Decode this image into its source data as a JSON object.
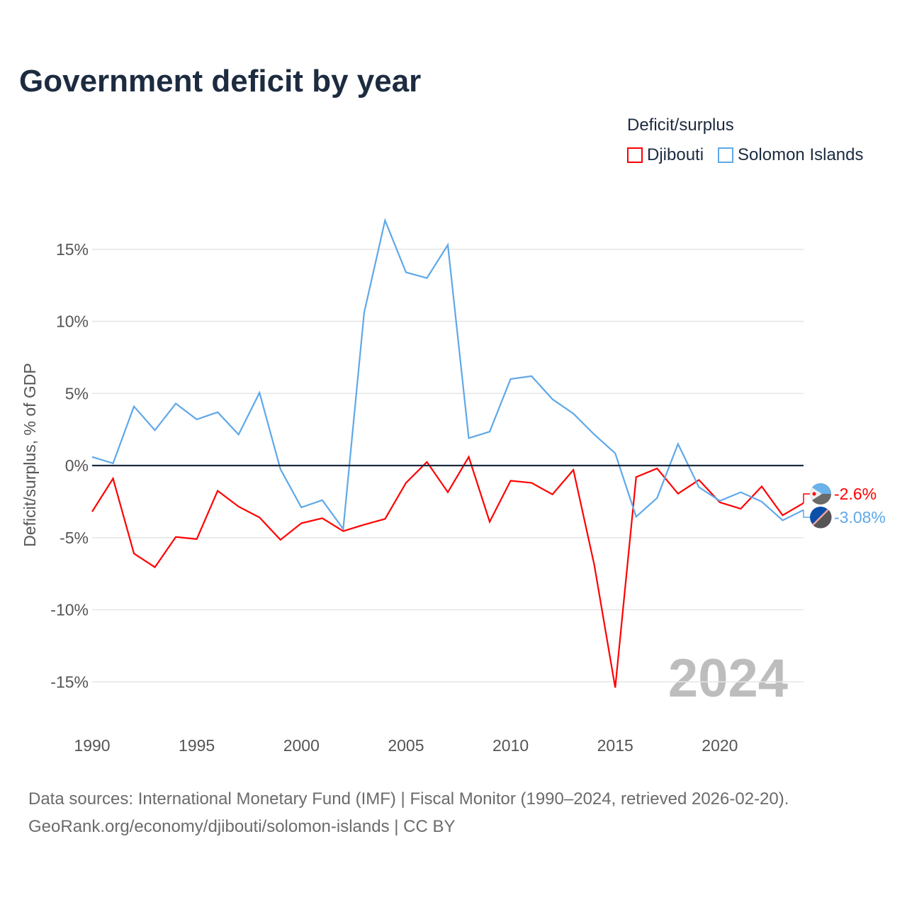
{
  "title": "Government deficit by year",
  "legend": {
    "title": "Deficit/surplus",
    "entries": [
      "Djibouti",
      "Solomon Islands"
    ]
  },
  "footer": {
    "line1": "Data sources: International Monetary Fund (IMF) | Fiscal Monitor (1990–2024, retrieved 2026-02-20).",
    "line2": "GeoRank.org/economy/djibouti/solomon-islands | CC BY"
  },
  "chart_data": {
    "type": "line",
    "title": "Government deficit by year",
    "xlabel": "",
    "ylabel": "Deficit/surplus, % of GDP",
    "xlim": [
      1990,
      2024
    ],
    "ylim": [
      -17.5,
      18.5
    ],
    "yticks": [
      15,
      10,
      5,
      0,
      -5,
      -10,
      -15
    ],
    "ytick_labels": [
      "15%",
      "10%",
      "5%",
      "0%",
      "-5%",
      "-10%",
      "-15%"
    ],
    "xticks": [
      1990,
      1995,
      2000,
      2005,
      2010,
      2015,
      2020
    ],
    "xtick_labels": [
      "1990",
      "1995",
      "2000",
      "2005",
      "2010",
      "2015",
      "2020"
    ],
    "grid": true,
    "legend_position": "top-right",
    "watermark_year": "2024",
    "x": [
      1990,
      1991,
      1992,
      1993,
      1994,
      1995,
      1996,
      1997,
      1998,
      1999,
      2000,
      2001,
      2002,
      2003,
      2004,
      2005,
      2006,
      2007,
      2008,
      2009,
      2010,
      2011,
      2012,
      2013,
      2014,
      2015,
      2016,
      2017,
      2018,
      2019,
      2020,
      2021,
      2022,
      2023,
      2024
    ],
    "series": [
      {
        "name": "Djibouti",
        "color": "#ff0000",
        "end_label": "-2.6%",
        "values": [
          -3.2,
          -0.9,
          -6.1,
          -7.05,
          -4.95,
          -5.1,
          -1.75,
          -2.85,
          -3.6,
          -5.15,
          -4.0,
          -3.65,
          -4.55,
          -4.1,
          -3.7,
          -1.2,
          0.25,
          -1.85,
          0.6,
          -3.9,
          -1.05,
          -1.2,
          -2.0,
          -0.3,
          -6.9,
          -15.4,
          -0.8,
          -0.2,
          -1.95,
          -1.0,
          -2.55,
          -3.0,
          -1.45,
          -3.45,
          -2.6
        ]
      },
      {
        "name": "Solomon Islands",
        "color": "#5fa8e8",
        "end_label": "-3.08%",
        "values": [
          0.6,
          0.15,
          4.1,
          2.45,
          4.3,
          3.2,
          3.7,
          2.15,
          5.05,
          -0.25,
          -2.9,
          -2.4,
          -4.4,
          10.6,
          17.0,
          13.4,
          13.0,
          15.3,
          1.9,
          2.35,
          6.0,
          6.2,
          4.6,
          3.6,
          2.15,
          0.85,
          -3.55,
          -2.25,
          1.5,
          -1.5,
          -2.45,
          -1.85,
          -2.5,
          -3.8,
          -3.08
        ]
      }
    ]
  }
}
